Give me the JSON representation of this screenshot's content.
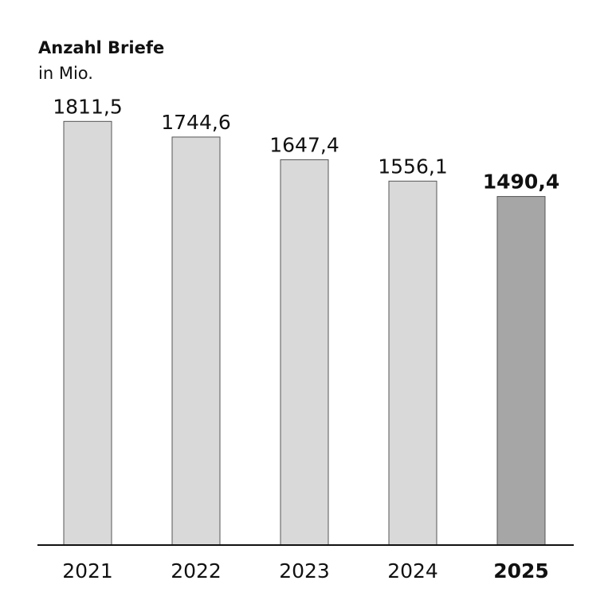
{
  "chart_data": {
    "type": "bar",
    "title": "Anzahl Briefe",
    "subtitle": "in Mio.",
    "categories": [
      "2021",
      "2022",
      "2023",
      "2024",
      "2025"
    ],
    "values": [
      1811.5,
      1744.6,
      1647.4,
      1556.1,
      1490.4
    ],
    "value_labels": [
      "1811,5",
      "1744,6",
      "1647,4",
      "1556,1",
      "1490,4"
    ],
    "colors": [
      "#d9d9d9",
      "#d9d9d9",
      "#d9d9d9",
      "#d9d9d9",
      "#a6a6a6"
    ],
    "bold": [
      false,
      false,
      false,
      false,
      true
    ],
    "ylim": [
      0,
      2000
    ]
  }
}
